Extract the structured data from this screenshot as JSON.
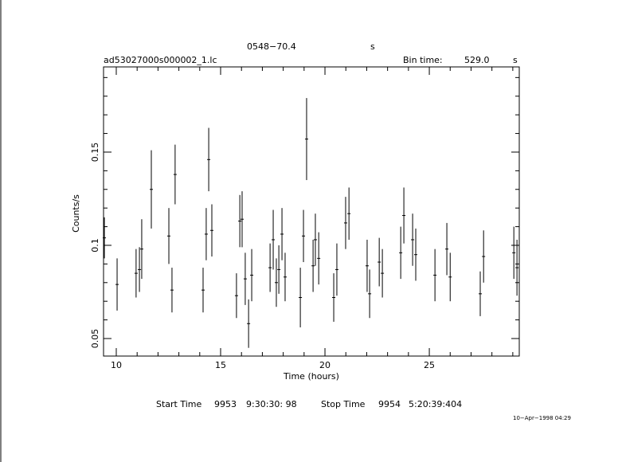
{
  "chart_data": {
    "type": "scatter",
    "title": "0548−70.4",
    "title_unit": "s",
    "subtitle": "ad53027000s000002_1.lc",
    "bin_time_label": "Bin time:",
    "bin_time": "529.0",
    "bin_time_unit": "s",
    "x_label": "Time (hours)",
    "y_label": "Counts/s",
    "start_time_label": "Start Time",
    "start_time_day": "9953",
    "start_time": "9:30:30: 98",
    "stop_time_label": "Stop Time",
    "stop_time_day": "9954",
    "stop_time": "5:20:39:404",
    "date": "10−Apr−1998 04:29",
    "xlim": [
      9.39,
      29.31
    ],
    "ylim": [
      0.0406,
      0.1957
    ],
    "xticks": [
      10,
      15,
      20,
      25
    ],
    "yticks": [
      0.05,
      0.1,
      0.15
    ],
    "xminorticks": [
      11,
      12,
      13,
      14,
      16,
      17,
      18,
      19,
      21,
      22,
      23,
      24,
      26,
      27,
      28,
      29
    ],
    "yminorticks": [
      0.06,
      0.07,
      0.08,
      0.09,
      0.11,
      0.12,
      0.13,
      0.14,
      0.16,
      0.17,
      0.18,
      0.19
    ],
    "series": [
      {
        "color": "#000000",
        "x": [
          9.43,
          10.04,
          10.95,
          11.11,
          11.22,
          11.68,
          12.52,
          12.67,
          12.82,
          14.16,
          14.31,
          14.43,
          14.58,
          15.76,
          15.92,
          16.03,
          16.18,
          16.34,
          16.49,
          17.37,
          17.52,
          17.67,
          17.79,
          17.94,
          18.09,
          18.82,
          18.97,
          19.12,
          19.43,
          19.54,
          19.7,
          20.42,
          20.57,
          20.99,
          21.15,
          22.02,
          22.14,
          22.6,
          22.75,
          23.63,
          23.78,
          24.2,
          24.35,
          25.27,
          25.84,
          26.0,
          27.44,
          27.6,
          29.05,
          29.2
        ],
        "values": [
          0.104,
          0.079,
          0.085,
          0.087,
          0.098,
          0.13,
          0.105,
          0.076,
          0.138,
          0.076,
          0.106,
          0.146,
          0.108,
          0.073,
          0.113,
          0.114,
          0.082,
          0.058,
          0.084,
          0.088,
          0.103,
          0.08,
          0.087,
          0.106,
          0.083,
          0.072,
          0.105,
          0.157,
          0.089,
          0.103,
          0.093,
          0.072,
          0.087,
          0.112,
          0.117,
          0.089,
          0.074,
          0.091,
          0.085,
          0.096,
          0.116,
          0.103,
          0.095,
          0.084,
          0.098,
          0.083,
          0.074,
          0.094,
          0.096,
          0.088
        ],
        "yerr": [
          0.011,
          0.014,
          0.013,
          0.012,
          0.016,
          0.021,
          0.015,
          0.012,
          0.016,
          0.012,
          0.014,
          0.017,
          0.014,
          0.012,
          0.014,
          0.015,
          0.014,
          0.013,
          0.014,
          0.013,
          0.016,
          0.013,
          0.013,
          0.014,
          0.013,
          0.016,
          0.014,
          0.022,
          0.014,
          0.014,
          0.014,
          0.013,
          0.014,
          0.014,
          0.014,
          0.014,
          0.013,
          0.013,
          0.013,
          0.014,
          0.015,
          0.014,
          0.014,
          0.014,
          0.014,
          0.013,
          0.012,
          0.014,
          0.014,
          0.015
        ]
      }
    ]
  }
}
